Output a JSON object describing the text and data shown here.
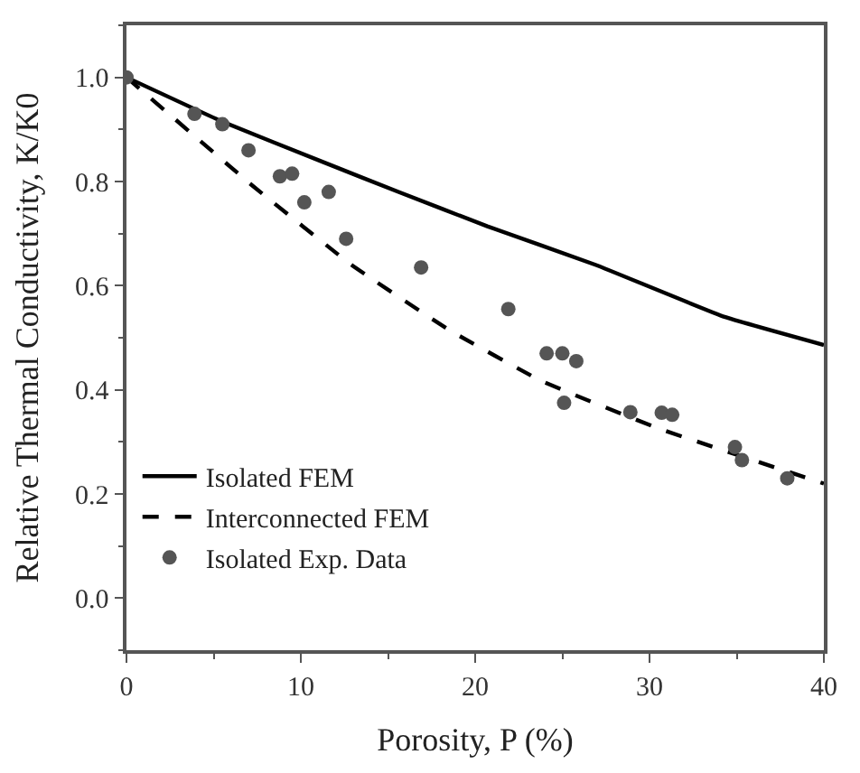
{
  "chart_data": {
    "type": "line",
    "xlabel": "Porosity, P (%)",
    "ylabel": "Relative Thermal Conductivity, K/K0",
    "xlim": [
      0,
      40
    ],
    "xticks": [
      0,
      10,
      20,
      30,
      40
    ],
    "ylim": [
      -0.1,
      1.1
    ],
    "yticks": [
      {
        "value": 0,
        "label": "0.0"
      },
      0.2,
      0.4,
      0.6,
      0.8,
      {
        "value": 1,
        "label": "1.0"
      }
    ],
    "legend": "bottom left",
    "series": [
      {
        "name": "Isolated FEM",
        "line_style": "solid",
        "color": "#000000",
        "x": [
          0,
          5.5,
          11.3,
          15.6,
          20.7,
          26.9,
          34.3,
          40
        ],
        "values": [
          1.0,
          0.915,
          0.837,
          0.78,
          0.714,
          0.64,
          0.54,
          0.486
        ]
      },
      {
        "name": "Interconnected FEM",
        "line_style": "dashed",
        "color": "#000000",
        "x": [
          0,
          7.3,
          12.9,
          18.5,
          23.8,
          30.5,
          40
        ],
        "values": [
          1.0,
          0.79,
          0.64,
          0.515,
          0.417,
          0.326,
          0.22
        ]
      },
      {
        "name": "Isolated Exp. Data",
        "type": "scatter",
        "marker": "circle",
        "color": "#555555",
        "x": [
          0,
          3.9,
          5.5,
          7.0,
          8.8,
          9.5,
          10.2,
          11.6,
          12.6,
          16.9,
          21.9,
          24.1,
          25.0,
          25.8,
          25.1,
          28.9,
          30.7,
          31.3,
          34.9,
          35.3,
          37.9
        ],
        "values": [
          1.0,
          0.93,
          0.91,
          0.86,
          0.81,
          0.815,
          0.76,
          0.78,
          0.69,
          0.635,
          0.555,
          0.47,
          0.47,
          0.455,
          0.375,
          0.357,
          0.356,
          0.352,
          0.29,
          0.265,
          0.23
        ]
      }
    ]
  }
}
